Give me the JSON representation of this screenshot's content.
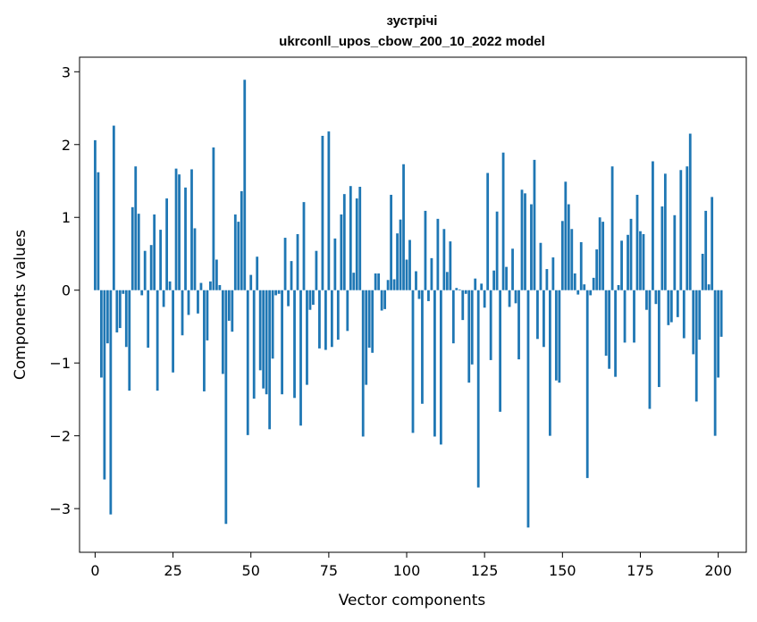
{
  "chart_data": {
    "type": "bar",
    "title": "зустрічі",
    "subtitle": "ukrconll_upos_cbow_200_10_2022 model",
    "xlabel": "Vector components",
    "ylabel": "Components values",
    "xlim": [
      -5,
      209
    ],
    "ylim": [
      -3.6,
      3.2
    ],
    "xticks": [
      0,
      25,
      50,
      75,
      100,
      125,
      150,
      175,
      200
    ],
    "yticks": [
      3,
      2,
      1,
      0,
      -1,
      -2,
      -3
    ],
    "ytick_labels": [
      "3",
      "2",
      "1",
      "0",
      "−1",
      "−2",
      "−3"
    ],
    "bar_color": "#1f77b4",
    "values": [
      2.06,
      1.62,
      -1.2,
      -2.6,
      -0.73,
      -3.08,
      2.26,
      -0.58,
      -0.52,
      -0.05,
      -0.78,
      -1.38,
      1.14,
      1.7,
      1.05,
      -0.07,
      0.54,
      -0.79,
      0.62,
      1.04,
      -1.38,
      0.83,
      -0.23,
      1.26,
      0.12,
      -1.13,
      1.67,
      1.59,
      -0.62,
      1.41,
      -0.34,
      1.66,
      0.85,
      -0.32,
      0.1,
      -1.39,
      -0.69,
      0.12,
      1.96,
      0.42,
      0.07,
      -1.15,
      -3.21,
      -0.42,
      -0.57,
      1.04,
      0.94,
      1.36,
      2.89,
      -1.99,
      0.21,
      -1.49,
      0.46,
      -1.1,
      -1.35,
      -1.43,
      -1.91,
      -0.94,
      -0.07,
      -0.05,
      -1.43,
      0.72,
      -0.22,
      0.4,
      -1.48,
      0.77,
      -1.86,
      1.21,
      -1.3,
      -0.27,
      -0.2,
      0.54,
      -0.8,
      2.12,
      -0.82,
      2.18,
      -0.78,
      0.71,
      -0.68,
      1.04,
      1.32,
      -0.56,
      1.43,
      0.24,
      1.26,
      1.42,
      -2.01,
      -1.3,
      -0.79,
      -0.86,
      0.23,
      0.23,
      -0.28,
      -0.26,
      0.14,
      1.31,
      0.15,
      0.78,
      0.97,
      1.73,
      0.42,
      0.69,
      -1.96,
      0.26,
      -0.12,
      -1.56,
      1.09,
      -0.15,
      0.44,
      -2.01,
      0.98,
      -2.12,
      0.84,
      0.25,
      0.67,
      -0.73,
      0.03,
      0.01,
      -0.41,
      -0.05,
      -1.27,
      -1.02,
      0.16,
      -2.71,
      0.09,
      -0.24,
      1.61,
      -0.96,
      0.27,
      1.08,
      -1.67,
      1.89,
      0.32,
      -0.23,
      0.57,
      -0.18,
      -0.95,
      1.38,
      1.33,
      -3.26,
      1.18,
      1.79,
      -0.67,
      0.65,
      -0.78,
      0.29,
      -2.0,
      0.45,
      -1.24,
      -1.27,
      0.95,
      1.49,
      1.18,
      0.84,
      0.23,
      -0.06,
      0.66,
      0.08,
      -2.58,
      -0.07,
      0.17,
      0.56,
      1.0,
      0.94,
      -0.9,
      -1.08,
      1.7,
      -1.19,
      0.07,
      0.68,
      -0.72,
      0.76,
      0.98,
      -0.72,
      1.31,
      0.81,
      0.77,
      -0.27,
      -1.63,
      1.77,
      -0.19,
      -1.33,
      1.15,
      1.6,
      -0.48,
      -0.44,
      1.03,
      -0.37,
      1.65,
      -0.66,
      1.7,
      2.15,
      -0.88,
      -1.53,
      -0.68,
      0.5,
      1.09,
      0.08,
      1.28,
      -2.0,
      -1.2,
      -0.64
    ]
  }
}
